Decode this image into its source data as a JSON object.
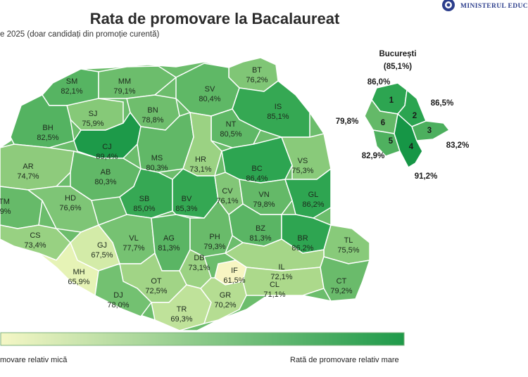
{
  "header": {
    "title": "Rata de promovare la Bacalaureat",
    "subtitle": "e 2025 (doar candidați din promoție curentă)",
    "logo_text": "MINISTERUL EDUC"
  },
  "legend": {
    "low_label": "movare relativ mică",
    "high_label": "Rată de promovare relativ mare",
    "colors": [
      "#f5f7c6",
      "#1f9a4a"
    ]
  },
  "counties": [
    {
      "code": "SM",
      "value": "82,1%",
      "color": "#56b462"
    },
    {
      "code": "MM",
      "value": "79,1%",
      "color": "#6cbd6c"
    },
    {
      "code": "BT",
      "value": "76,2%",
      "color": "#80c676"
    },
    {
      "code": "SV",
      "value": "80,4%",
      "color": "#5fb866"
    },
    {
      "code": "SJ",
      "value": "75,9%",
      "color": "#86c978"
    },
    {
      "code": "BN",
      "value": "78,8%",
      "color": "#6fbe6d"
    },
    {
      "code": "IS",
      "value": "85,1%",
      "color": "#35a853"
    },
    {
      "code": "BH",
      "value": "82,5%",
      "color": "#54b361"
    },
    {
      "code": "CJ",
      "value": "89,4%",
      "color": "#1d9a49"
    },
    {
      "code": "NT",
      "value": "80,5%",
      "color": "#5fb866"
    },
    {
      "code": "MS",
      "value": "80,3%",
      "color": "#61b867"
    },
    {
      "code": "HR",
      "value": "73,1%",
      "color": "#9bd283"
    },
    {
      "code": "BC",
      "value": "86,4%",
      "color": "#2da551"
    },
    {
      "code": "VS",
      "value": "75,3%",
      "color": "#89ca7a"
    },
    {
      "code": "AR",
      "value": "74,7%",
      "color": "#8ecb7c"
    },
    {
      "code": "AB",
      "value": "80,3%",
      "color": "#61b867"
    },
    {
      "code": "TM",
      "value": ",9%",
      "color": "#66ba69"
    },
    {
      "code": "HD",
      "value": "76,6%",
      "color": "#7ec576"
    },
    {
      "code": "SB",
      "value": "85,0%",
      "color": "#36a854"
    },
    {
      "code": "BV",
      "value": "85,3%",
      "color": "#34a853"
    },
    {
      "code": "CV",
      "value": "76,1%",
      "color": "#82c677"
    },
    {
      "code": "VN",
      "value": "79,8%",
      "color": "#64b968"
    },
    {
      "code": "GL",
      "value": "86,2%",
      "color": "#2ea551"
    },
    {
      "code": "CS",
      "value": "73,4%",
      "color": "#98d182"
    },
    {
      "code": "BZ",
      "value": "81,3%",
      "color": "#5ab564"
    },
    {
      "code": "VL",
      "value": "77,7%",
      "color": "#76c272"
    },
    {
      "code": "AG",
      "value": "81,3%",
      "color": "#5ab564"
    },
    {
      "code": "PH",
      "value": "79,3%",
      "color": "#69bb6a"
    },
    {
      "code": "BR",
      "value": "86,2%",
      "color": "#2ea551"
    },
    {
      "code": "GJ",
      "value": "67,5%",
      "color": "#d3eba8"
    },
    {
      "code": "TL",
      "value": "75,5%",
      "color": "#88ca7a"
    },
    {
      "code": "MH",
      "value": "65,9%",
      "color": "#e6f3b6"
    },
    {
      "code": "DB",
      "value": "73,1%",
      "color": "#9bd283"
    },
    {
      "code": "IL",
      "value": "72,1%",
      "color": "#a5d688"
    },
    {
      "code": "IF",
      "value": "61,5%",
      "color": "#f7f5c2"
    },
    {
      "code": "OT",
      "value": "72,5%",
      "color": "#a1d486"
    },
    {
      "code": "CL",
      "value": "71,1%",
      "color": "#acd98b"
    },
    {
      "code": "CT",
      "value": "79,2%",
      "color": "#6abb6b"
    },
    {
      "code": "DJ",
      "value": "78,0%",
      "color": "#73c171"
    },
    {
      "code": "TR",
      "value": "69,3%",
      "color": "#bfe29a"
    },
    {
      "code": "GR",
      "value": "70,2%",
      "color": "#b5dd92"
    }
  ],
  "bucuresti": {
    "title": "București",
    "total": "(85,1%)",
    "sectors": [
      {
        "num": "1",
        "value": "86,0%",
        "color": "#2da551"
      },
      {
        "num": "2",
        "value": "86,5%",
        "color": "#2ba450"
      },
      {
        "num": "3",
        "value": "83,2%",
        "color": "#4caf5e"
      },
      {
        "num": "4",
        "value": "91,2%",
        "color": "#169646"
      },
      {
        "num": "5",
        "value": "82,9%",
        "color": "#4fb15f"
      },
      {
        "num": "6",
        "value": "79,8%",
        "color": "#64b968"
      }
    ]
  }
}
